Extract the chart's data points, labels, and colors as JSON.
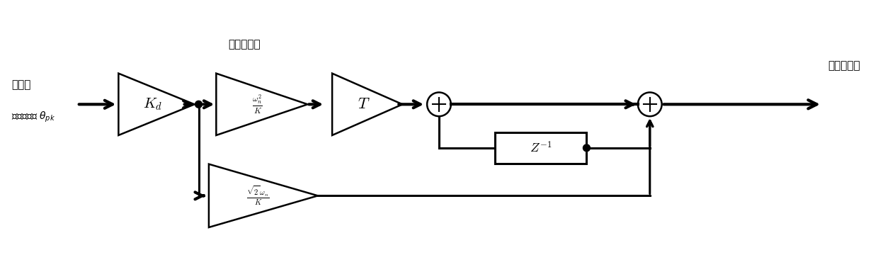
{
  "bg_color": "#ffffff",
  "line_color": "#000000",
  "input_label_line1": "角误差",
  "input_label_line2": "鉴相器输出 $\\theta_{pk}$",
  "filter_input_label": "滤波器输入",
  "filter_output_label": "滤波器输出",
  "block_Kd": "$K_d$",
  "block_wn2K": "$\\frac{\\omega_n^2}{K}$",
  "block_T": "$T$",
  "block_Z": "$Z^{-1}$",
  "block_sqrt2": "$\\frac{\\sqrt{2}\\,\\omega_n}{K}$",
  "lw": 1.8,
  "lw2": 2.2,
  "lw3": 3.0
}
